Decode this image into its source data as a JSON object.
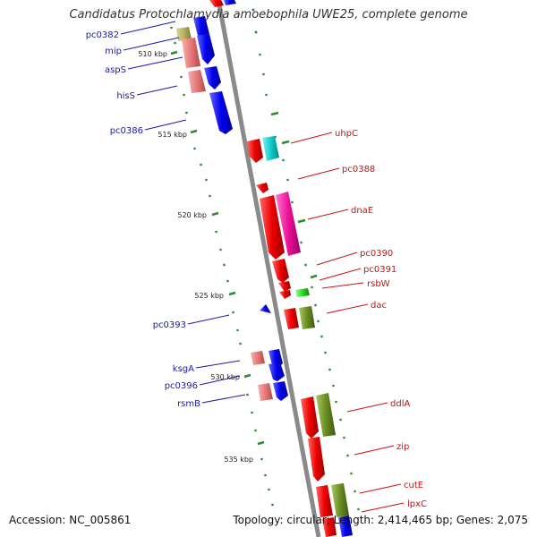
{
  "title": "Candidatus Protochlamydia amoebophila UWE25, complete genome",
  "accession": "Accession: NC_005861",
  "topology": "Topology: circular; Length: 2,414,465 bp; Genes: 2,075",
  "colors": {
    "backbone": "#8a8a8a",
    "tick": "#2e8b2e",
    "label_left": "#1a1aa8",
    "label_right": "#cc1111",
    "gene_red": "#ee1111",
    "gene_blue": "#1a1aee",
    "gene_pink": "#e88080",
    "gene_magenta": "#ee2299",
    "gene_cyan": "#22cccc",
    "gene_olive": "#6b8e23",
    "gene_green": "#33cc33",
    "gene_khaki": "#b8b060"
  },
  "scale_labels": [
    {
      "name": "tick-510",
      "text": "510 kbp"
    },
    {
      "name": "tick-515",
      "text": "515 kbp"
    },
    {
      "name": "tick-520",
      "text": "520 kbp"
    },
    {
      "name": "tick-525",
      "text": "525 kbp"
    },
    {
      "name": "tick-530",
      "text": "530 kbp"
    },
    {
      "name": "tick-535",
      "text": "535 kbp"
    }
  ],
  "gene_labels_left": [
    "pc0382",
    "mip",
    "aspS",
    "hisS",
    "pc0386",
    "pc0393",
    "ksgA",
    "pc0396",
    "rsmB"
  ],
  "gene_labels_right": [
    "uhpC",
    "pc0388",
    "dnaE",
    "pc0390",
    "pc0391",
    "rsbW",
    "dac",
    "ddlA",
    "zip",
    "cutE",
    "lpxC"
  ]
}
